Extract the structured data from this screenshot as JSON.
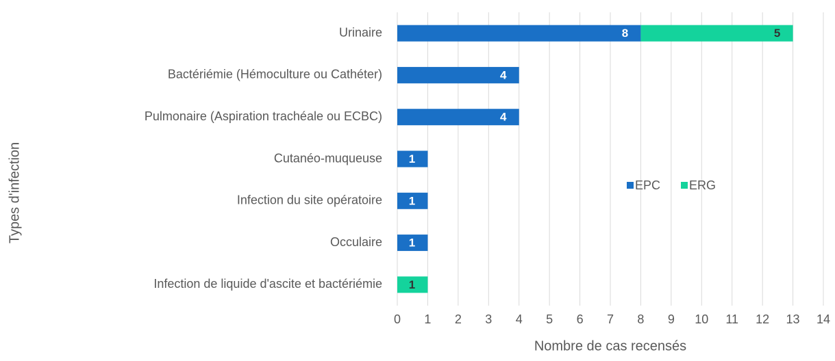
{
  "chart_data": {
    "type": "stacked_barh",
    "xlabel": "Nombre de cas recensés",
    "ylabel": "Types d'infection",
    "categories": [
      "Urinaire",
      "Bactériémie (Hémoculture ou Cathéter)",
      "Pulmonaire (Aspiration trachéale ou ECBC)",
      "Cutanéo-muqueuse",
      "Infection du site opératoire",
      "Occulaire",
      "Infection de liquide d'ascite et bactériémie"
    ],
    "series": [
      {
        "name": "EPC",
        "color": "#1a70c6",
        "label_color": "#ffffff",
        "values": [
          8,
          4,
          4,
          1,
          1,
          1,
          null
        ]
      },
      {
        "name": "ERG",
        "color": "#14d39c",
        "label_color": "#333333",
        "values": [
          5,
          null,
          null,
          null,
          null,
          null,
          1
        ]
      }
    ],
    "xlim": [
      0,
      14
    ],
    "xticks": [
      0,
      1,
      2,
      3,
      4,
      5,
      6,
      7,
      8,
      9,
      10,
      11,
      12,
      13,
      14
    ],
    "grid": true,
    "legend": "right"
  }
}
